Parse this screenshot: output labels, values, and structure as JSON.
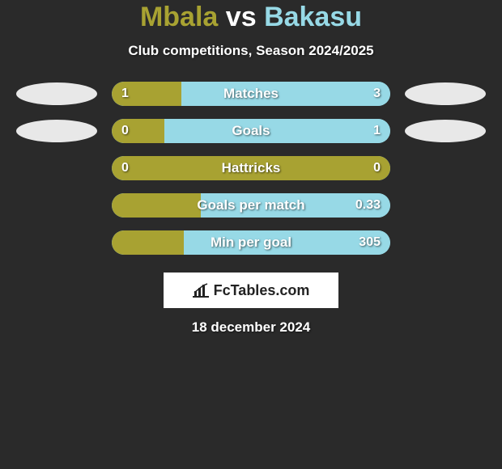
{
  "title": {
    "p1": "Mbala",
    "vs": "vs",
    "p2": "Bakasu"
  },
  "subtitle": "Club competitions, Season 2024/2025",
  "colors": {
    "p1": "#a8a232",
    "p2": "#97d9e6",
    "bg": "#2a2a2a",
    "ellipse": "#e8e8e8",
    "text": "#ffffff"
  },
  "rows": [
    {
      "label": "Matches",
      "v1": "1",
      "v2": "3",
      "pct1": 25,
      "pct2": 75,
      "ellipses": true
    },
    {
      "label": "Goals",
      "v1": "0",
      "v2": "1",
      "pct1": 19,
      "pct2": 81,
      "ellipses": true
    },
    {
      "label": "Hattricks",
      "v1": "0",
      "v2": "0",
      "pct1": 100,
      "pct2": 0,
      "ellipses": false
    },
    {
      "label": "Goals per match",
      "v1": "",
      "v2": "0.33",
      "pct1": 32,
      "pct2": 68,
      "ellipses": false
    },
    {
      "label": "Min per goal",
      "v1": "",
      "v2": "305",
      "pct1": 26,
      "pct2": 74,
      "ellipses": false
    }
  ],
  "logo": "FcTables.com",
  "date": "18 december 2024"
}
